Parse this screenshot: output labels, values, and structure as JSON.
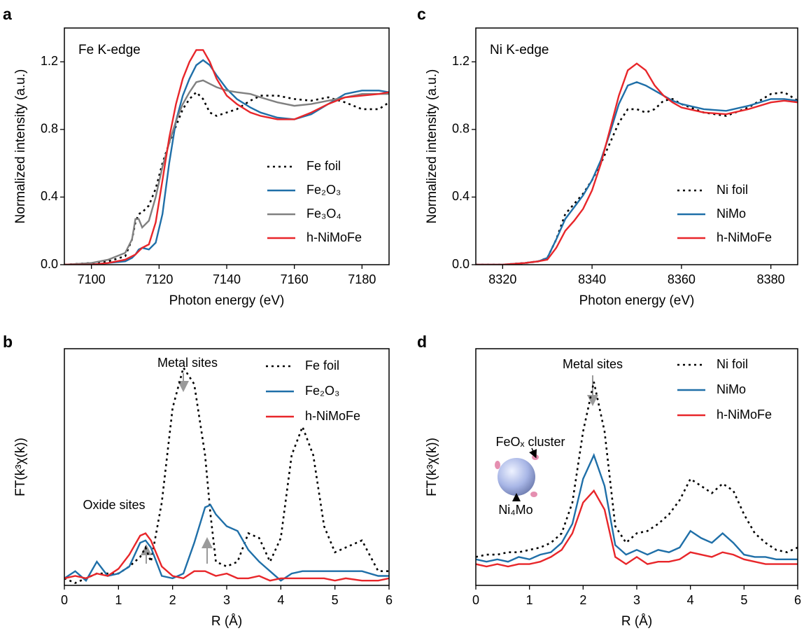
{
  "chart_data": [
    {
      "type": "line",
      "label": "a",
      "title": "Fe K-edge",
      "xlabel": "Photon energy (eV)",
      "ylabel": "Normalized intensity (a.u.)",
      "xlim": [
        7092,
        7188
      ],
      "ylim": [
        0,
        1.4
      ],
      "xticks": [
        7100,
        7120,
        7140,
        7160,
        7180
      ],
      "yticks": [
        {
          "value": 0,
          "label": "0.0"
        },
        0.4,
        0.8,
        1.2
      ],
      "legend": "lower right",
      "x": [
        7092,
        7100,
        7105,
        7110,
        7112,
        7113,
        7114,
        7115,
        7117,
        7119,
        7121,
        7123,
        7125,
        7127,
        7129,
        7131,
        7133,
        7135,
        7137,
        7140,
        7143,
        7147,
        7150,
        7155,
        7160,
        7165,
        7170,
        7175,
        7180,
        7185,
        7188
      ],
      "series": [
        {
          "name": "Fe foil",
          "color": "#000000",
          "linestyle": "dotted",
          "values": [
            0,
            0.01,
            0.02,
            0.05,
            0.15,
            0.25,
            0.3,
            0.31,
            0.35,
            0.45,
            0.6,
            0.72,
            0.82,
            0.92,
            0.98,
            1.02,
            0.98,
            0.9,
            0.88,
            0.9,
            0.92,
            0.97,
            1.0,
            1.0,
            0.98,
            0.97,
            0.99,
            0.96,
            0.92,
            0.92,
            0.96
          ]
        },
        {
          "name": "Fe₂O₃",
          "color": "#1f6fa8",
          "linestyle": "solid",
          "values": [
            0,
            0,
            0.01,
            0.02,
            0.04,
            0.06,
            0.09,
            0.1,
            0.09,
            0.13,
            0.3,
            0.6,
            0.85,
            1.0,
            1.1,
            1.18,
            1.21,
            1.18,
            1.12,
            1.04,
            0.98,
            0.93,
            0.9,
            0.87,
            0.86,
            0.89,
            0.95,
            1.01,
            1.03,
            1.03,
            1.02
          ]
        },
        {
          "name": "Fe₃O₄",
          "color": "#808080",
          "linestyle": "solid",
          "values": [
            0,
            0.01,
            0.03,
            0.07,
            0.15,
            0.27,
            0.27,
            0.22,
            0.26,
            0.4,
            0.58,
            0.72,
            0.85,
            0.95,
            1.02,
            1.08,
            1.09,
            1.07,
            1.05,
            1.03,
            1.02,
            1.01,
            0.99,
            0.96,
            0.94,
            0.95,
            0.97,
            0.99,
            1.01,
            1.01,
            1.01
          ]
        },
        {
          "name": "h-NiMoFe",
          "color": "#e8262a",
          "linestyle": "solid",
          "values": [
            0,
            0,
            0.01,
            0.03,
            0.05,
            0.06,
            0.08,
            0.1,
            0.12,
            0.25,
            0.5,
            0.75,
            0.95,
            1.1,
            1.2,
            1.27,
            1.27,
            1.2,
            1.1,
            1.0,
            0.95,
            0.9,
            0.88,
            0.86,
            0.86,
            0.9,
            0.95,
            0.99,
            1.0,
            1.01,
            1.02
          ]
        }
      ]
    },
    {
      "type": "line",
      "label": "b",
      "xlabel": "R (Å)",
      "ylabel": "FT(k³χ(k))",
      "xlim": [
        0,
        6
      ],
      "ylim": [
        0,
        10
      ],
      "xticks": [
        0,
        1,
        2,
        3,
        4,
        5,
        6
      ],
      "legend": "upper right",
      "annotations": [
        "Metal sites",
        "Oxide sites"
      ],
      "x": [
        0,
        0.2,
        0.4,
        0.6,
        0.8,
        1.0,
        1.2,
        1.4,
        1.5,
        1.6,
        1.8,
        2.0,
        2.2,
        2.4,
        2.6,
        2.7,
        2.8,
        3.0,
        3.2,
        3.4,
        3.6,
        3.8,
        4.0,
        4.2,
        4.4,
        4.6,
        4.8,
        5.0,
        5.2,
        5.5,
        5.8,
        6.0
      ],
      "series": [
        {
          "name": "Fe foil",
          "color": "#000000",
          "linestyle": "dotted",
          "values": [
            0.3,
            0.1,
            0.3,
            0.5,
            0.5,
            0.5,
            0.8,
            1.2,
            1.6,
            1.0,
            3.5,
            7.5,
            9.2,
            8.5,
            5.5,
            3.0,
            1.0,
            0.8,
            1.0,
            2.2,
            2.0,
            1.0,
            2.0,
            5.5,
            6.7,
            5.5,
            2.5,
            1.4,
            1.6,
            1.9,
            0.6,
            0.6
          ]
        },
        {
          "name": "Fe₂O₃",
          "color": "#1f6fa8",
          "linestyle": "solid",
          "values": [
            0.3,
            0.6,
            0.2,
            1.0,
            0.4,
            0.5,
            0.8,
            1.8,
            1.9,
            1.6,
            0.4,
            0.3,
            0.5,
            1.8,
            3.3,
            3.4,
            3.0,
            2.5,
            2.3,
            1.5,
            1.0,
            0.6,
            0.2,
            0.5,
            0.6,
            0.6,
            0.6,
            0.6,
            0.6,
            0.6,
            0.4,
            0.4
          ]
        },
        {
          "name": "h-NiMoFe",
          "color": "#e8262a",
          "linestyle": "solid",
          "values": [
            0.3,
            0.4,
            0.3,
            0.5,
            0.4,
            0.7,
            1.3,
            2.1,
            2.2,
            1.9,
            0.8,
            0.4,
            0.3,
            0.6,
            0.6,
            0.5,
            0.4,
            0.5,
            0.3,
            0.3,
            0.4,
            0.2,
            0.3,
            0.3,
            0.3,
            0.3,
            0.3,
            0.2,
            0.3,
            0.2,
            0.2,
            0.3
          ]
        }
      ]
    },
    {
      "type": "line",
      "label": "c",
      "title": "Ni K-edge",
      "xlabel": "Photon energy (eV)",
      "ylabel": "Normalized intensity (a.u.)",
      "xlim": [
        8314,
        8386
      ],
      "ylim": [
        0,
        1.4
      ],
      "xticks": [
        8320,
        8340,
        8360,
        8380
      ],
      "yticks": [
        {
          "value": 0,
          "label": "0.0"
        },
        0.4,
        0.8,
        1.2
      ],
      "legend": "lower right",
      "x": [
        8314,
        8320,
        8325,
        8328,
        8330,
        8332,
        8334,
        8336,
        8338,
        8340,
        8342,
        8344,
        8346,
        8348,
        8350,
        8352,
        8354,
        8356,
        8358,
        8360,
        8365,
        8370,
        8375,
        8380,
        8383,
        8386
      ],
      "series": [
        {
          "name": "Ni foil",
          "color": "#000000",
          "linestyle": "dotted",
          "values": [
            0,
            0,
            0.01,
            0.02,
            0.04,
            0.15,
            0.3,
            0.36,
            0.42,
            0.5,
            0.6,
            0.72,
            0.84,
            0.92,
            0.92,
            0.9,
            0.92,
            0.97,
            0.98,
            0.95,
            0.9,
            0.88,
            0.93,
            1.01,
            1.02,
            0.97
          ]
        },
        {
          "name": "NiMo",
          "color": "#1f6fa8",
          "linestyle": "solid",
          "values": [
            0,
            0,
            0.01,
            0.02,
            0.04,
            0.15,
            0.27,
            0.34,
            0.41,
            0.5,
            0.62,
            0.78,
            0.95,
            1.06,
            1.08,
            1.06,
            1.03,
            1.0,
            0.97,
            0.95,
            0.92,
            0.91,
            0.94,
            0.98,
            0.98,
            0.97
          ]
        },
        {
          "name": "h-NiMoFe",
          "color": "#e8262a",
          "linestyle": "solid",
          "values": [
            0,
            0,
            0.01,
            0.02,
            0.03,
            0.1,
            0.2,
            0.26,
            0.33,
            0.44,
            0.6,
            0.8,
            1.0,
            1.15,
            1.19,
            1.15,
            1.06,
            1.0,
            0.96,
            0.93,
            0.9,
            0.89,
            0.92,
            0.96,
            0.97,
            0.96
          ]
        }
      ]
    },
    {
      "type": "line",
      "label": "d",
      "xlabel": "R (Å)",
      "ylabel": "FT(k³χ(k))",
      "xlim": [
        0,
        6
      ],
      "ylim": [
        0,
        10
      ],
      "xticks": [
        0,
        1,
        2,
        3,
        4,
        5,
        6
      ],
      "legend": "upper right",
      "annotations": [
        "Metal sites",
        "FeOₓ cluster",
        "Ni₄Mo"
      ],
      "x": [
        0,
        0.2,
        0.4,
        0.6,
        0.8,
        1.0,
        1.2,
        1.4,
        1.6,
        1.8,
        2.0,
        2.2,
        2.4,
        2.6,
        2.8,
        3.0,
        3.2,
        3.4,
        3.6,
        3.8,
        4.0,
        4.2,
        4.4,
        4.6,
        4.8,
        5.0,
        5.2,
        5.4,
        5.6,
        5.8,
        6.0
      ],
      "series": [
        {
          "name": "Ni foil",
          "color": "#000000",
          "linestyle": "dotted",
          "values": [
            1.2,
            1.3,
            1.3,
            1.4,
            1.4,
            1.5,
            1.6,
            1.8,
            2.2,
            3.5,
            6.5,
            8.6,
            6.5,
            2.5,
            1.8,
            2.2,
            2.3,
            2.6,
            3.0,
            3.6,
            4.5,
            4.2,
            3.9,
            4.3,
            4.0,
            3.0,
            2.2,
            1.8,
            1.5,
            1.4,
            1.6
          ]
        },
        {
          "name": "NiMo",
          "color": "#1f6fa8",
          "linestyle": "solid",
          "values": [
            1.1,
            1.0,
            1.1,
            1.0,
            1.2,
            1.1,
            1.3,
            1.4,
            1.8,
            2.6,
            4.5,
            5.5,
            4.2,
            1.7,
            1.3,
            1.5,
            1.3,
            1.5,
            1.4,
            1.6,
            2.3,
            2.0,
            1.8,
            2.2,
            1.8,
            1.3,
            1.2,
            1.2,
            1.1,
            1.1,
            1.1
          ]
        },
        {
          "name": "h-NiMoFe",
          "color": "#e8262a",
          "linestyle": "solid",
          "values": [
            0.9,
            0.8,
            0.9,
            0.8,
            0.9,
            0.9,
            1.0,
            1.2,
            1.5,
            2.2,
            3.5,
            4.0,
            3.2,
            1.2,
            0.9,
            1.2,
            0.9,
            1.0,
            1.0,
            1.1,
            1.4,
            1.3,
            1.2,
            1.4,
            1.3,
            1.1,
            1.0,
            0.9,
            0.9,
            0.9,
            0.9
          ]
        }
      ]
    }
  ]
}
